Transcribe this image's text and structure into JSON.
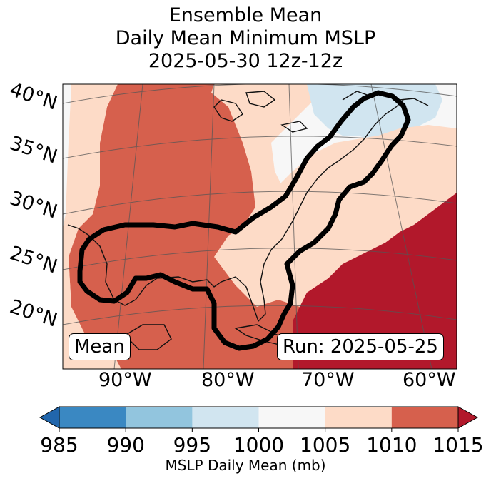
{
  "title": {
    "line1": "Ensemble Mean",
    "line2": "Daily Mean Minimum MSLP",
    "line3": "2025-05-30 12z-12z"
  },
  "map": {
    "lat_labels": [
      "40°N",
      "35°N",
      "30°N",
      "25°N",
      "20°N"
    ],
    "lon_labels": [
      "90°W",
      "80°W",
      "70°W",
      "60°W"
    ],
    "mean_box": "Mean",
    "run_box": "Run: 2025-05-25",
    "contour_color": "#000000",
    "field_colors": {
      "985-990": "#3a88c2",
      "990-995": "#92c5de",
      "995-1000": "#d1e5f0",
      "1000-1005": "#f7f7f7",
      "1005-1010": "#fddbc7",
      "1010-1015": "#d6604d",
      "above-1015": "#b2182b"
    }
  },
  "colorbar": {
    "ticks": [
      "985",
      "990",
      "995",
      "1000",
      "1005",
      "1010",
      "1015"
    ],
    "colors": [
      "#3a88c2",
      "#92c5de",
      "#d1e5f0",
      "#f7f7f7",
      "#fddbc7",
      "#d6604d"
    ],
    "under_color": "#2166ac",
    "over_color": "#b2182b",
    "label": "MSLP Daily Mean (mb)"
  }
}
